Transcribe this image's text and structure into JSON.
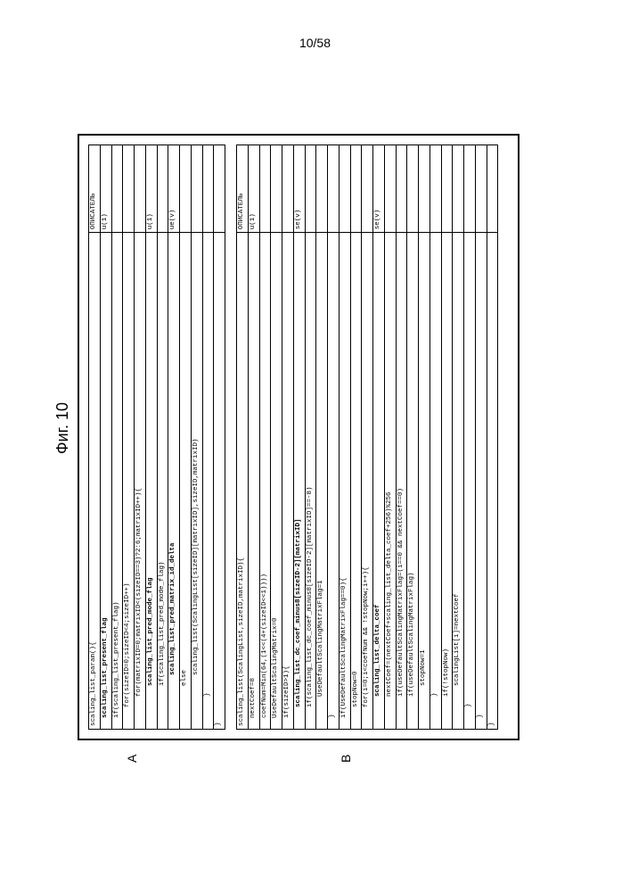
{
  "page_number": "10/58",
  "figure_title": "Фиг. 10",
  "section_a_label": "A",
  "section_b_label": "B",
  "descriptor_header": "ОПИСАТЕЛЬ",
  "table_a": {
    "rows": [
      {
        "code": "scaling_list_param(){",
        "indent": 0,
        "desc": "",
        "bold": false
      },
      {
        "code": "scaling_list_present_flag",
        "indent": 1,
        "desc": "u(1)",
        "bold": true
      },
      {
        "code": "if(scaling_list_present_flag)",
        "indent": 1,
        "desc": "",
        "bold": false
      },
      {
        "code": "for(sizeID=0;sizeID<4;sizeID++)",
        "indent": 2,
        "desc": "",
        "bold": false
      },
      {
        "code": "for(matrixID=0;matrixID<(sizeID==3)?2:6;matrixID++){",
        "indent": 3,
        "desc": "",
        "bold": false
      },
      {
        "code": "scaling_list_pred_mode_flag",
        "indent": 4,
        "desc": "u(1)",
        "bold": true
      },
      {
        "code": "if(scaling_list_pred_mode_flag)",
        "indent": 4,
        "desc": "",
        "bold": false
      },
      {
        "code": "scaling_list_pred_matrix_id_delta",
        "indent": 5,
        "desc": "ue(v)",
        "bold": true
      },
      {
        "code": "else",
        "indent": 4,
        "desc": "",
        "bold": false
      },
      {
        "code": "scaling_list(ScalingList[sizeID][matrixID],sizeID,matrixID)",
        "indent": 5,
        "desc": "",
        "bold": false
      },
      {
        "code": "}",
        "indent": 3,
        "desc": "",
        "bold": false
      },
      {
        "code": "}",
        "indent": 0,
        "desc": "",
        "bold": false
      }
    ]
  },
  "table_b": {
    "rows": [
      {
        "code": "scaling_list(ScalingList,sizeID,matrixID){",
        "indent": 0,
        "desc": "",
        "bold": false
      },
      {
        "code": "nextCoef=8",
        "indent": 1,
        "desc": "u(1)",
        "bold": false
      },
      {
        "code": "coefNum=Min(64,(1<<(4+(sizeID<<1))))",
        "indent": 1,
        "desc": "",
        "bold": false
      },
      {
        "code": "UseDefaultScalingMatrix=0",
        "indent": 1,
        "desc": "",
        "bold": false
      },
      {
        "code": "if(sizeID>1){",
        "indent": 1,
        "desc": "",
        "bold": false
      },
      {
        "code": "scaling_list_dc_coef_minus8[sizeID-2][matrixID]",
        "indent": 2,
        "desc": "se(v)",
        "bold": true
      },
      {
        "code": "if(scaling_list_dc_coef_minus8[sizeID-2][matrixID]==-8)",
        "indent": 2,
        "desc": "",
        "bold": false
      },
      {
        "code": "UseDefaultScalingMatrixFlag=1",
        "indent": 3,
        "desc": "",
        "bold": false
      },
      {
        "code": "}",
        "indent": 1,
        "desc": "",
        "bold": false
      },
      {
        "code": "if(UseDefaultScalingMatrixFlag==0){",
        "indent": 1,
        "desc": "",
        "bold": false
      },
      {
        "code": "stopNow=0",
        "indent": 2,
        "desc": "",
        "bold": false
      },
      {
        "code": "for(i=0;i<coefNum && !stopNow;i++){",
        "indent": 2,
        "desc": "",
        "bold": false
      },
      {
        "code": "scaling_list_delta_coef",
        "indent": 3,
        "desc": "se(v)",
        "bold": true
      },
      {
        "code": "nextCoef=(nextCoef+scaling_list_delta_coef+256)%256",
        "indent": 3,
        "desc": "",
        "bold": false
      },
      {
        "code": "if(useDefaultScalingMatrixFlag=(i==0 && nextCoef==0)",
        "indent": 3,
        "desc": "",
        "bold": false
      },
      {
        "code": "if(useDefaultScalingMatrixFlag)",
        "indent": 3,
        "desc": "",
        "bold": false
      },
      {
        "code": "stopNow=1",
        "indent": 4,
        "desc": "",
        "bold": false
      },
      {
        "code": "}",
        "indent": 3,
        "desc": "",
        "bold": false
      },
      {
        "code": "if(!stopNow)",
        "indent": 3,
        "desc": "",
        "bold": false
      },
      {
        "code": "scalingList[i]=nextCoef",
        "indent": 4,
        "desc": "",
        "bold": false
      },
      {
        "code": "}",
        "indent": 2,
        "desc": "",
        "bold": false
      },
      {
        "code": "}",
        "indent": 1,
        "desc": "",
        "bold": false
      },
      {
        "code": "}",
        "indent": 0,
        "desc": "",
        "bold": false
      }
    ]
  }
}
